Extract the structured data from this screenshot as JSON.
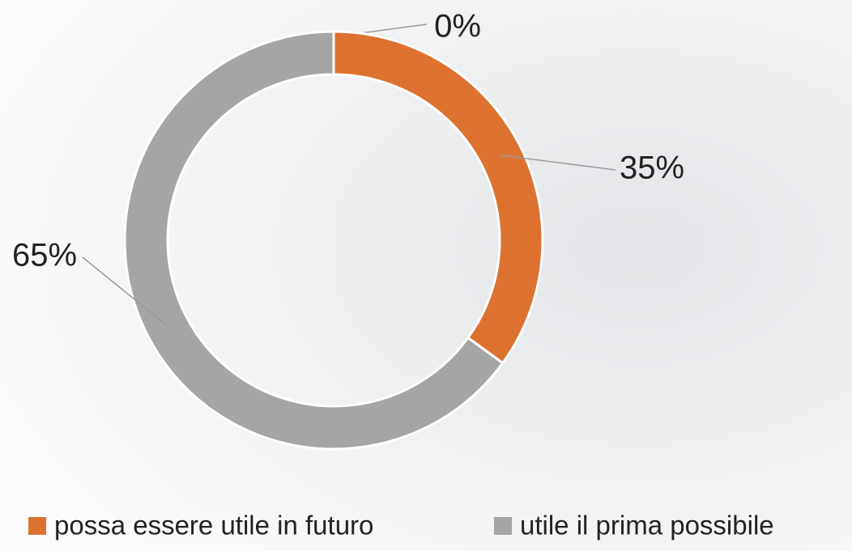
{
  "chart_data": {
    "type": "donut",
    "categories": [
      null,
      "possa essere utile in futuro",
      "utile il prima possibile"
    ],
    "values": [
      0,
      35,
      65
    ],
    "value_labels": [
      "0%",
      "35%",
      "65%"
    ],
    "colors": [
      null,
      "#dd7230",
      "#a5a5a5"
    ],
    "legend": "bottom"
  }
}
